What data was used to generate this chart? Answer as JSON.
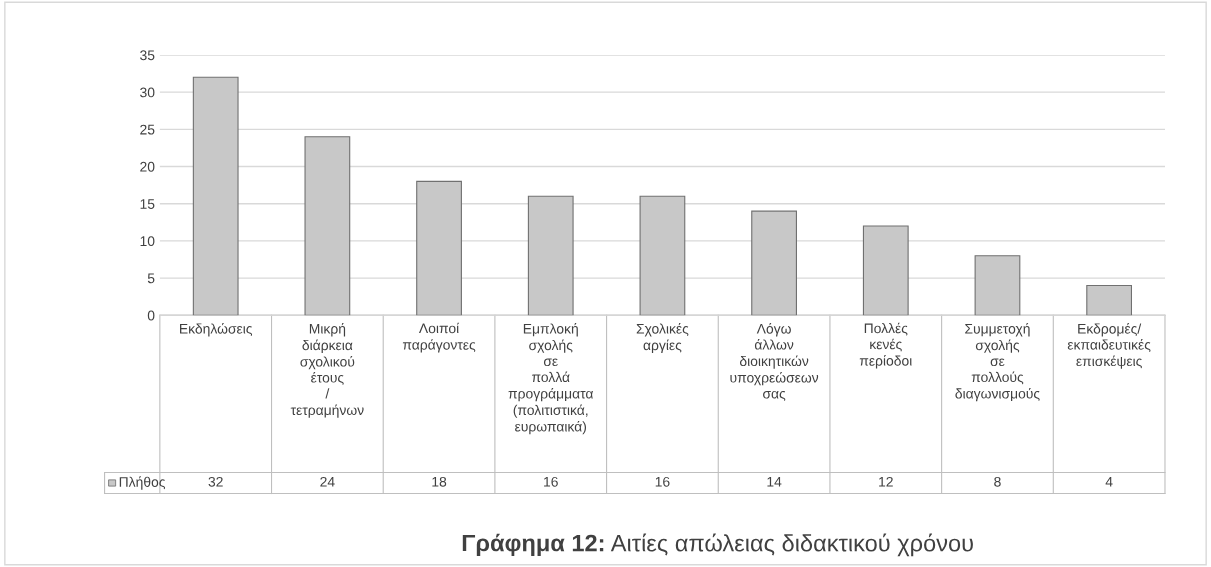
{
  "chart_data": {
    "type": "bar",
    "title": "Γράφημα 12: Αιτίες απώλειας διδακτικού χρόνου",
    "categories": [
      "Εκδηλώσεις",
      "Μικρή διάρκεια σχολικού έτους / τετραμήνων",
      "Λοιποί παράγοντες",
      "Εμπλοκή σχολής σε πολλά προγράμματα (πολιτιστικά, ευρωπαικά)",
      "Σχολικές αργίες",
      "Λόγω άλλων διοικητικών υποχρεώσεων σας",
      "Πολλές κενές περίοδοι",
      "Συμμετοχή σχολής σε πολλούς διαγωνισμούς",
      "Εκδρομές/εκπαιδευτικές επισκέψεις"
    ],
    "series": [
      {
        "name": "Πλήθος",
        "color": "#c8c8c8",
        "values": [
          32,
          24,
          18,
          16,
          16,
          14,
          12,
          8,
          4
        ]
      }
    ],
    "ylim": [
      0,
      35
    ],
    "yticks": [
      0,
      5,
      10,
      15,
      20,
      25,
      30,
      35
    ],
    "grid": "y",
    "data_labels": true
  }
}
